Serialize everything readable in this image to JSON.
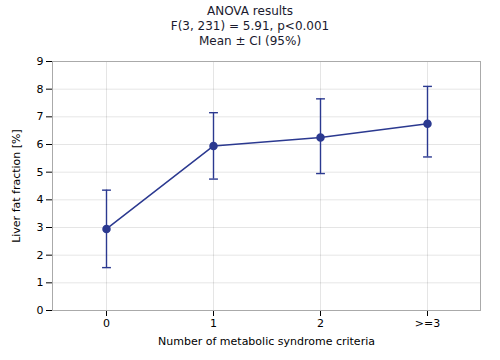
{
  "chart_data": {
    "type": "line",
    "title": "ANOVA results\nF(3, 231) = 5.91,   p<0.001\nMean ± CI (95%)",
    "xlabel": "Number of metabolic syndrome criteria",
    "ylabel": "Liver fat fraction [%]",
    "categories": [
      "0",
      "1",
      "2",
      ">=3"
    ],
    "values": [
      2.95,
      5.95,
      6.25,
      6.75
    ],
    "ci_lower": [
      1.55,
      4.75,
      4.95,
      5.55
    ],
    "ci_upper": [
      4.35,
      7.15,
      7.65,
      8.1
    ],
    "color": "#2b3990",
    "marker": "circle",
    "line_style": "solid",
    "ylim": [
      0,
      9
    ],
    "yticks": [
      0,
      1,
      2,
      3,
      4,
      5,
      6,
      7,
      8,
      9
    ],
    "grid": true
  }
}
